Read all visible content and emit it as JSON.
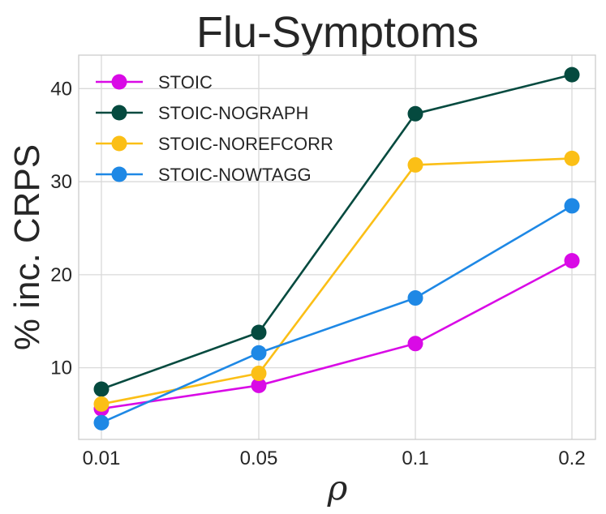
{
  "chart_data": {
    "type": "line",
    "title": "Flu-Symptoms",
    "xlabel": "ρ",
    "ylabel": "% inc. CRPS",
    "categories": [
      "0.01",
      "0.05",
      "0.1",
      "0.2"
    ],
    "ylim": [
      2.3,
      43.6
    ],
    "yticks": [
      10,
      20,
      30,
      40
    ],
    "grid": true,
    "legend_position": "top-left",
    "series": [
      {
        "name": "STOIC",
        "color": "#d90ae6",
        "values": [
          5.6,
          8.1,
          12.6,
          21.5
        ]
      },
      {
        "name": "STOIC-NOGRAPH",
        "color": "#054a3f",
        "values": [
          7.7,
          13.8,
          37.3,
          41.5
        ]
      },
      {
        "name": "STOIC-NOREFCORR",
        "color": "#fbbf16",
        "values": [
          6.1,
          9.4,
          31.8,
          32.5
        ]
      },
      {
        "name": "STOIC-NOWTAGG",
        "color": "#1e88e5",
        "values": [
          4.1,
          11.6,
          17.5,
          27.4
        ]
      }
    ]
  }
}
